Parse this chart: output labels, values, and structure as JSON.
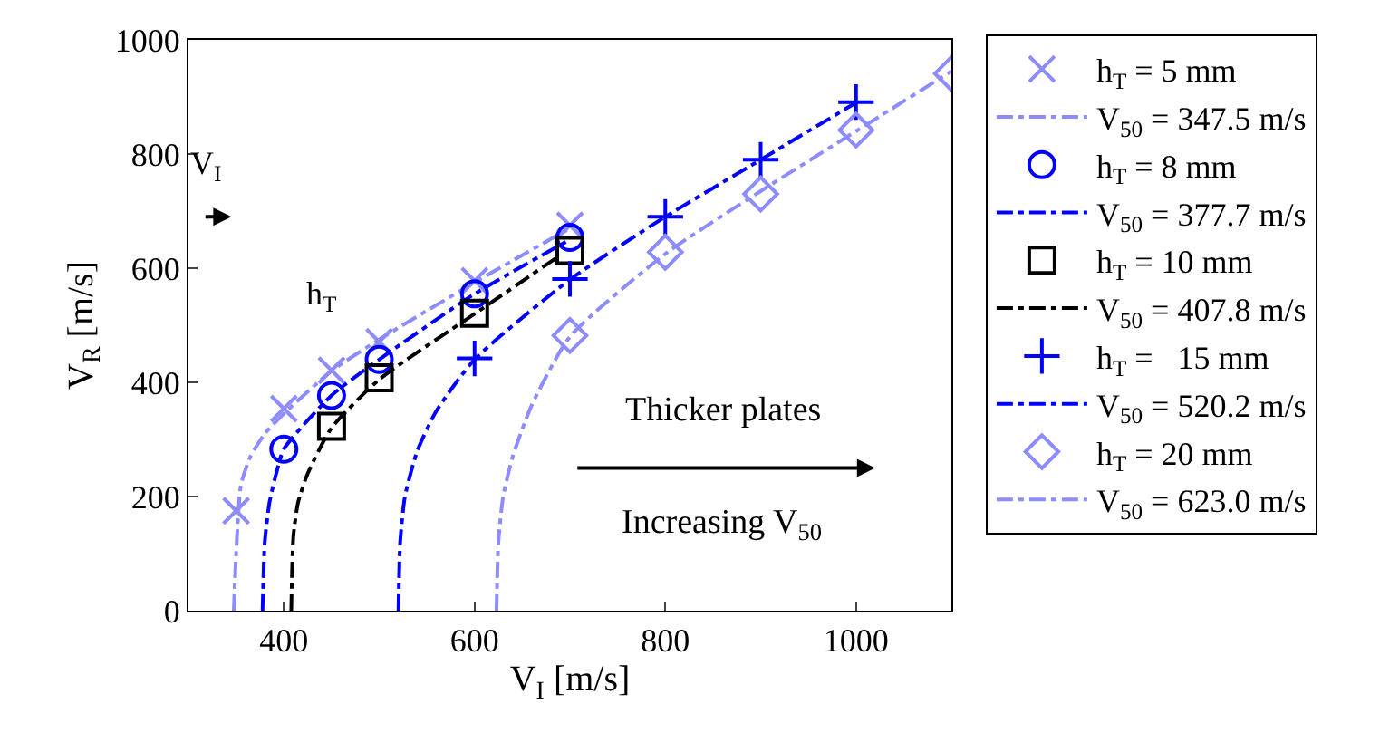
{
  "chart_data": {
    "type": "scatter",
    "xlabel": "V$_{I}$ [m/s]",
    "ylabel": "V$_{R}$ [m/s]",
    "xlim": [
      300,
      1100
    ],
    "xticks": [
      400,
      600,
      800,
      1000
    ],
    "ylim": [
      0,
      1000
    ],
    "yticks": [
      0,
      200,
      400,
      600,
      800,
      1000
    ],
    "legend": "right",
    "annotations": [
      "V$_{I}$",
      "h$_{T}$",
      "Thicker plates",
      "Increasing V$_{50}$"
    ],
    "series": [
      {
        "name": "h$_{T}$ = 5 mm",
        "color": "#8c8cff",
        "marker": "x",
        "x": [
          350,
          400,
          450,
          500,
          600,
          700
        ],
        "values": [
          175,
          354,
          421,
          471,
          578,
          675
        ]
      },
      {
        "type": "line",
        "name": "V$_{50}$ = 347.5 m/s",
        "color": "#8c8cff",
        "marker": "none",
        "line_style": "dashed",
        "x": [
          347.5,
          350,
          355,
          365,
          380,
          400,
          450,
          500,
          600,
          700
        ],
        "values": [
          0,
          100,
          220,
          270,
          310,
          345,
          420,
          475,
          575,
          670
        ]
      },
      {
        "name": "h$_{T}$ = 8 mm",
        "color": "#0000ff",
        "marker": "circle",
        "x": [
          400,
          450,
          500,
          600,
          700
        ],
        "values": [
          283,
          377,
          440,
          555,
          654
        ]
      },
      {
        "type": "line",
        "name": "V$_{50}$ = 377.7 m/s",
        "color": "#0000ff",
        "marker": "none",
        "line_style": "dashed",
        "x": [
          377.7,
          380,
          385,
          392,
          400,
          450,
          500,
          600,
          700
        ],
        "values": [
          0,
          120,
          190,
          240,
          283,
          377,
          440,
          555,
          650
        ]
      },
      {
        "name": "h$_{T}$ = 10 mm",
        "color": "#000000",
        "marker": "square",
        "x": [
          450,
          500,
          600,
          700
        ],
        "values": [
          323,
          408,
          521,
          631
        ]
      },
      {
        "type": "line",
        "name": "V$_{50}$ = 407.8 m/s",
        "color": "#000000",
        "marker": "none",
        "line_style": "dashed",
        "x": [
          407.8,
          410,
          415,
          425,
          450,
          500,
          600,
          690
        ],
        "values": [
          0,
          130,
          190,
          240,
          320,
          405,
          520,
          623
        ]
      },
      {
        "name": "h$_{T}$ =   15 mm",
        "color": "#0000ff",
        "marker": "cross",
        "x": [
          600,
          700,
          800,
          900,
          1000
        ],
        "values": [
          442,
          581,
          690,
          790,
          891
        ]
      },
      {
        "type": "line",
        "name": "V$_{50}$ = 520.2 m/s",
        "color": "#0000ff",
        "marker": "none",
        "line_style": "dashed",
        "x": [
          520.2,
          522,
          527,
          540,
          560,
          600,
          700,
          800,
          900,
          1000
        ],
        "values": [
          0,
          120,
          200,
          280,
          350,
          440,
          580,
          690,
          790,
          890
        ]
      },
      {
        "name": "h$_{T}$ = 20 mm",
        "color": "#8c8cff",
        "marker": "diamond",
        "x": [
          700,
          800,
          900,
          1000,
          1100
        ],
        "values": [
          482,
          628,
          730,
          842,
          941
        ]
      },
      {
        "type": "line",
        "name": "V$_{50}$ = 623.0 m/s",
        "color": "#8c8cff",
        "marker": "none",
        "line_style": "dashed",
        "x": [
          623,
          625,
          630,
          640,
          660,
          700,
          800,
          900,
          1000,
          1100
        ],
        "values": [
          0,
          120,
          200,
          270,
          360,
          480,
          625,
          735,
          840,
          945
        ]
      }
    ]
  }
}
